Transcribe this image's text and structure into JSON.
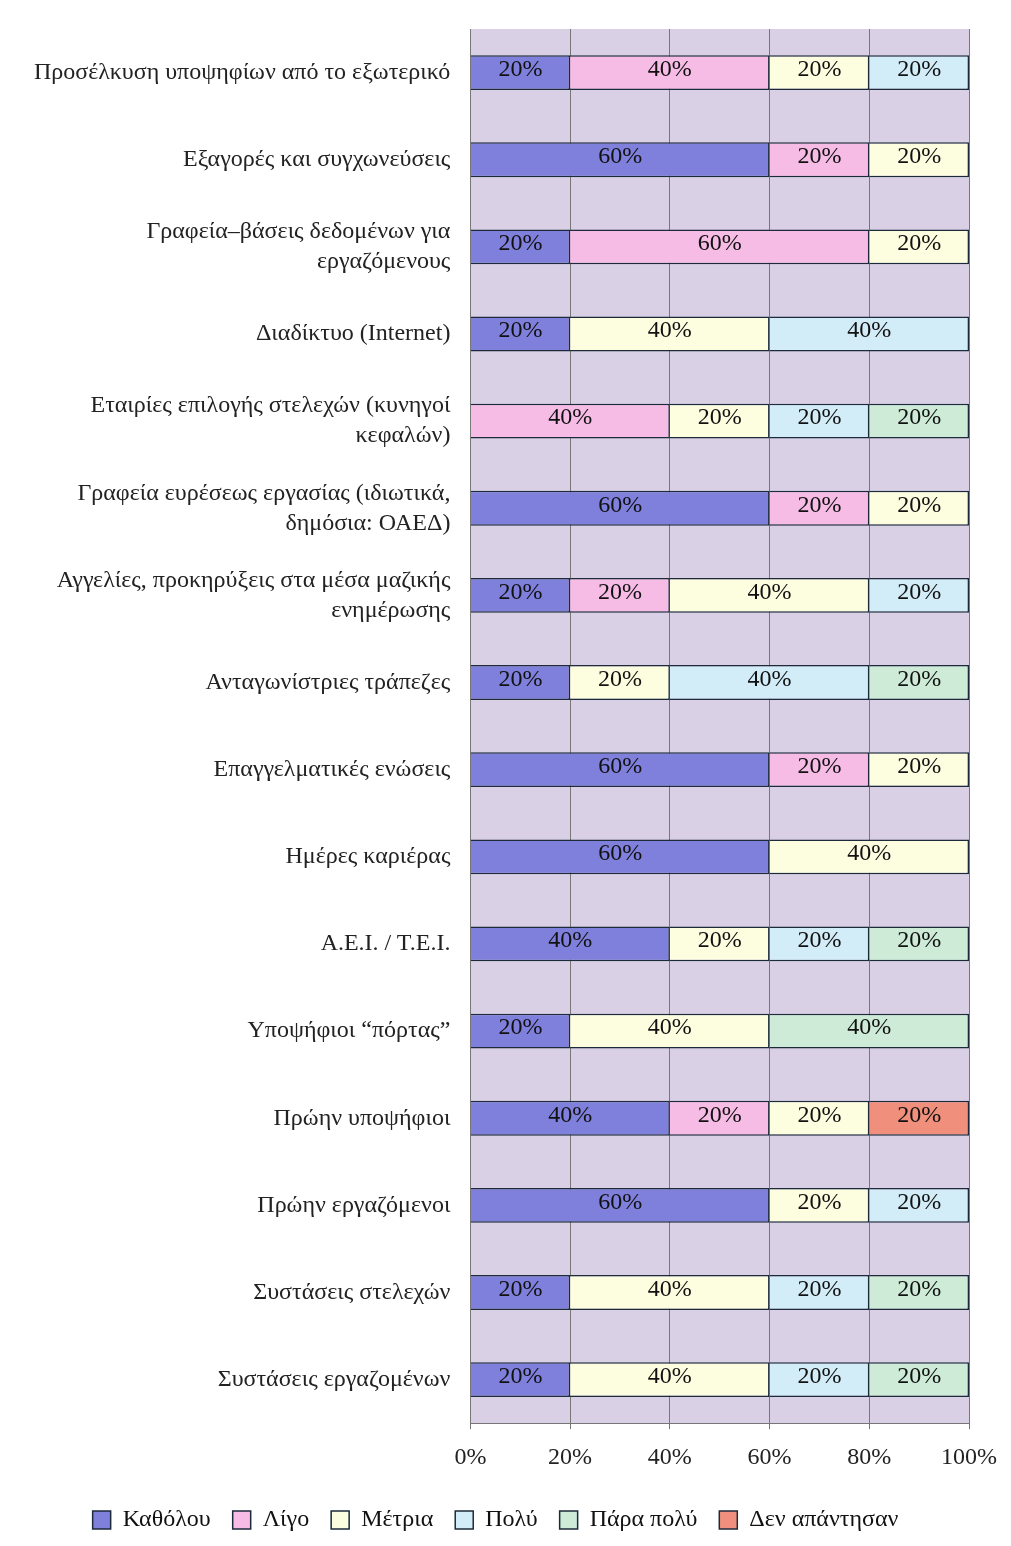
{
  "chart_data": {
    "type": "bar",
    "orientation": "horizontal",
    "stacked": true,
    "categories": [
      "Προσέλκυση υποψηφίων από το εξωτερικό",
      "Εξαγορές και συγχωνεύσεις",
      "Γραφεία–βάσεις δεδομένων για εργαζόμενους",
      "Διαδίκτυο (Internet)",
      "Εταιρίες επιλογής στελεχών (κυνηγοί κεφαλών)",
      "Γραφεία ευρέσεως εργασίας (ιδιωτικά, δημόσια: ΟΑΕΔ)",
      "Αγγελίες, προκηρύξεις στα μέσα μαζικής ενημέρωσης",
      "Ανταγωνίστριες τράπεζες",
      "Επαγγελματικές ενώσεις",
      "Ημέρες καριέρας",
      "Α.Ε.Ι. / Τ.Ε.Ι.",
      "Υποψήφιοι “πόρτας”",
      "Πρώην υποψήφιοι",
      "Πρώην εργαζόμενοι",
      "Συστάσεις στελεχών",
      "Συστάσεις εργαζομένων"
    ],
    "series": [
      {
        "name": "Καθόλου",
        "color": "#7f7fdc",
        "values": [
          20,
          60,
          20,
          20,
          null,
          60,
          20,
          20,
          60,
          60,
          40,
          20,
          40,
          60,
          20,
          20
        ],
        "value_labels": [
          "20%",
          "60%",
          "20%",
          "20%",
          null,
          "60%",
          "20%",
          "20%",
          "60%",
          "60%",
          "40%",
          "20%",
          "40%",
          "60%",
          "20%",
          "20%"
        ]
      },
      {
        "name": "Λίγο",
        "color": "#f6bce6",
        "values": [
          40,
          20,
          60,
          null,
          40,
          20,
          20,
          null,
          20,
          null,
          null,
          null,
          20,
          null,
          null,
          null
        ],
        "value_labels": [
          "40%",
          "20%",
          "60%",
          null,
          "40%",
          "20%",
          "20%",
          null,
          "20%",
          null,
          null,
          null,
          "20%",
          null,
          null,
          null
        ]
      },
      {
        "name": "Μέτρια",
        "color": "#fdfde0",
        "values": [
          20,
          20,
          20,
          40,
          20,
          20,
          40,
          20,
          20,
          40,
          20,
          40,
          20,
          20,
          40,
          40
        ],
        "value_labels": [
          "20%",
          "20%",
          "20%",
          "40%",
          "20%",
          "20%",
          "40%",
          "20%",
          "20%",
          "40%",
          "20%",
          "40%",
          "20%",
          "20%",
          "40%",
          "40%"
        ]
      },
      {
        "name": "Πολύ",
        "color": "#d2ecf8",
        "values": [
          20,
          null,
          null,
          40,
          20,
          null,
          20,
          40,
          null,
          null,
          20,
          null,
          null,
          20,
          20,
          20
        ],
        "value_labels": [
          "20%",
          null,
          null,
          "40%",
          "20%",
          null,
          "20%",
          "40%",
          null,
          null,
          "20%",
          null,
          null,
          "20%",
          "20%",
          "20%"
        ]
      },
      {
        "name": "Πάρα πολύ",
        "color": "#cdebd6",
        "values": [
          null,
          null,
          null,
          null,
          20,
          null,
          null,
          20,
          null,
          null,
          20,
          40,
          null,
          null,
          20,
          20
        ],
        "value_labels": [
          null,
          null,
          null,
          null,
          "20%",
          null,
          null,
          "20%",
          null,
          null,
          "20%",
          "40%",
          null,
          null,
          "20%",
          "20%"
        ]
      },
      {
        "name": "Δεν απάντησαν",
        "color": "#f0907c",
        "values": [
          null,
          null,
          null,
          null,
          null,
          null,
          null,
          null,
          null,
          null,
          null,
          null,
          20,
          null,
          null,
          null
        ],
        "value_labels": [
          null,
          null,
          null,
          null,
          null,
          null,
          null,
          null,
          null,
          null,
          null,
          null,
          "20%",
          null,
          null,
          null
        ]
      }
    ],
    "xlim": [
      0,
      100
    ],
    "xticks": [
      {
        "value": 0,
        "label": "0%"
      },
      {
        "value": 20,
        "label": "20%"
      },
      {
        "value": 40,
        "label": "40%"
      },
      {
        "value": 60,
        "label": "60%"
      },
      {
        "value": 80,
        "label": "80%"
      },
      {
        "value": 100,
        "label": "100%"
      }
    ],
    "grid": "x",
    "legend": "bottom"
  }
}
